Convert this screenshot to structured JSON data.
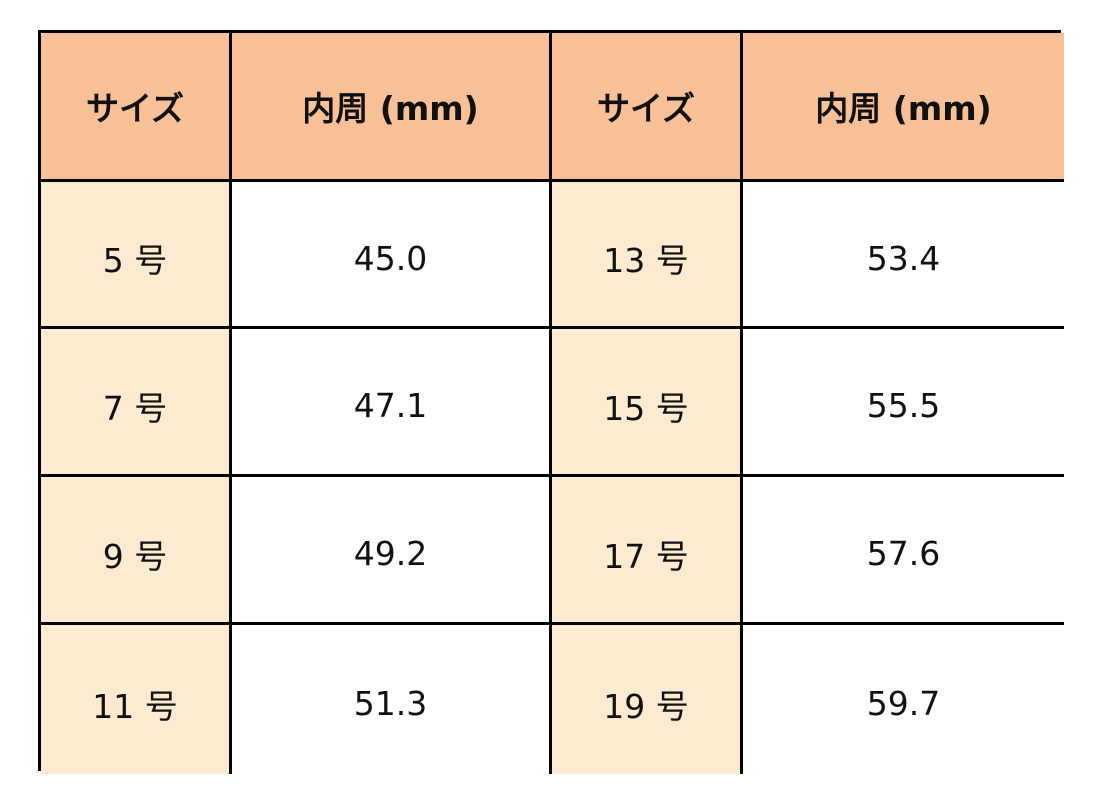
{
  "colors": {
    "header": "#F8C096",
    "size_cell": "#FCEBD0",
    "value_cell": "#FFFFFF",
    "border": "#000000"
  },
  "table": {
    "headers": [
      "サイズ",
      "内周 (mm)",
      "サイズ",
      "内周 (mm)"
    ],
    "rows": [
      [
        "5 号",
        "45.0",
        "13 号",
        "53.4"
      ],
      [
        "7 号",
        "47.1",
        "15 号",
        "55.5"
      ],
      [
        "9 号",
        "49.2",
        "17 号",
        "57.6"
      ],
      [
        "11 号",
        "51.3",
        "19 号",
        "59.7"
      ]
    ]
  }
}
